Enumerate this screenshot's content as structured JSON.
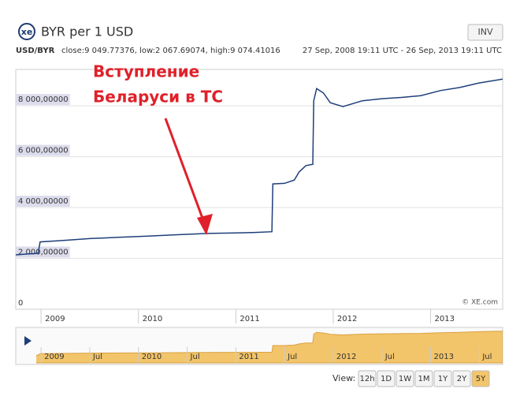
{
  "header": {
    "logo": "xe",
    "title": "BYR per 1 USD",
    "button": "INV",
    "pair": "USD/BYR",
    "stats": "close:9 049.77376, low:2 067.69074, high:9 074.41016",
    "range": "27 Sep, 2008 19:11 UTC - 26 Sep, 2013 19:11 UTC"
  },
  "chart_data": {
    "type": "line",
    "annotation": [
      "Вступление",
      "Беларуси в ТС"
    ],
    "watermark": "© XE.com",
    "x": [
      2008.74,
      2008.85,
      2008.97,
      2008.99,
      2009.2,
      2009.5,
      2009.8,
      2010.1,
      2010.4,
      2010.7,
      2011.0,
      2011.2,
      2011.37,
      2011.38,
      2011.5,
      2011.6,
      2011.65,
      2011.72,
      2011.79,
      2011.8,
      2011.83,
      2011.9,
      2011.97,
      2012.1,
      2012.3,
      2012.5,
      2012.7,
      2012.9,
      2013.1,
      2013.3,
      2013.5,
      2013.74
    ],
    "series": [
      {
        "name": "USD/BYR",
        "color": "#1f3f7a",
        "values": [
          2140,
          2170,
          2200,
          2650,
          2700,
          2780,
          2830,
          2880,
          2930,
          2980,
          3000,
          3020,
          3050,
          4930,
          4950,
          5080,
          5400,
          5650,
          5700,
          8200,
          8680,
          8500,
          8120,
          7970,
          8200,
          8280,
          8330,
          8400,
          8600,
          8720,
          8900,
          9050
        ]
      }
    ],
    "xlim": [
      2008.74,
      2013.74
    ],
    "xticks": [
      2009,
      2010,
      2011,
      2012,
      2013
    ],
    "ylim": [
      0,
      9430
    ],
    "yticks": [
      0,
      {
        "value": 2000,
        "label": "2 000,00000"
      },
      {
        "value": 4000,
        "label": "4 000,00000"
      },
      {
        "value": 6000,
        "label": "6 000,00000"
      },
      {
        "value": 8000,
        "label": "8 000,00000"
      }
    ],
    "grid": true
  },
  "navigator": {
    "labels": [
      "2009",
      "Jul",
      "2010",
      "Jul",
      "2011",
      "Jul",
      "2012",
      "Jul",
      "2013",
      "Jul"
    ],
    "color": "#f3c56a"
  },
  "controls": {
    "view_label": "View:",
    "buttons": [
      "12h",
      "1D",
      "1W",
      "1M",
      "1Y",
      "2Y",
      "5Y"
    ],
    "active": "5Y"
  }
}
